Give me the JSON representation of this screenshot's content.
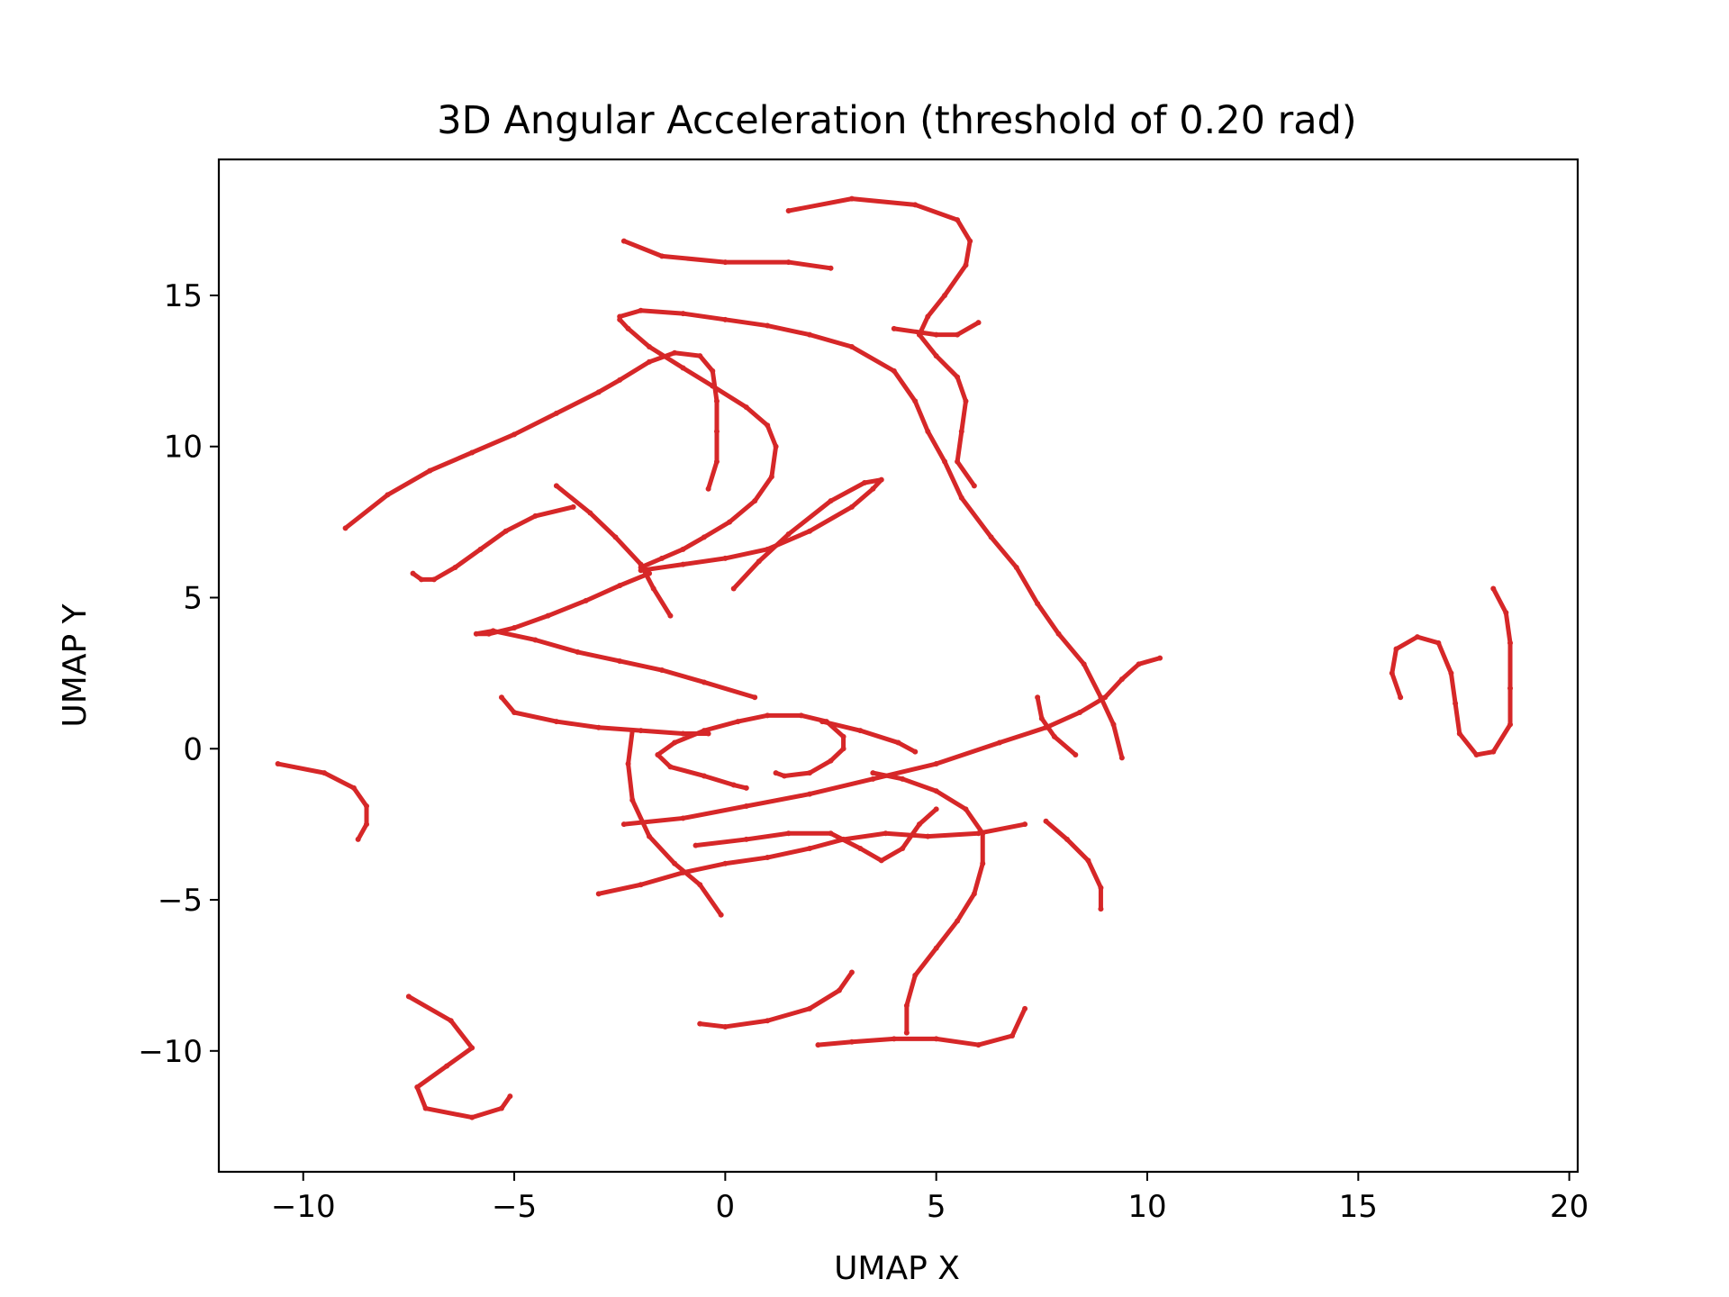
{
  "chart_data": {
    "type": "scatter",
    "title": "3D Angular Acceleration (threshold of 0.20 rad)",
    "xlabel": "UMAP X",
    "ylabel": "UMAP Y",
    "xlim": [
      -12,
      20.2
    ],
    "ylim": [
      -14,
      19.5
    ],
    "xticks": [
      -10,
      -5,
      0,
      5,
      10,
      15,
      20
    ],
    "yticks": [
      -10,
      -5,
      0,
      5,
      10,
      15
    ],
    "xtick_labels": [
      "−10",
      "−5",
      "0",
      "5",
      "10",
      "15",
      "20"
    ],
    "ytick_labels": [
      "−10",
      "−5",
      "0",
      "5",
      "10",
      "15"
    ],
    "grid": false,
    "legend": "none",
    "marker_color": "#d62728",
    "series": [
      {
        "values": [
          [
            1.5,
            17.8
          ],
          [
            3,
            18.2
          ],
          [
            4.5,
            18
          ],
          [
            5.5,
            17.5
          ],
          [
            5.8,
            16.8
          ],
          [
            5.7,
            16
          ],
          [
            5.2,
            15
          ],
          [
            4.8,
            14.3
          ],
          [
            4.6,
            13.7
          ],
          [
            5,
            13
          ],
          [
            5.5,
            12.3
          ],
          [
            5.7,
            11.5
          ],
          [
            5.6,
            10.5
          ],
          [
            5.5,
            9.5
          ],
          [
            5.9,
            8.7
          ]
        ]
      },
      {
        "values": [
          [
            4,
            13.9
          ],
          [
            5,
            13.7
          ],
          [
            5.5,
            13.7
          ],
          [
            6,
            14.1
          ]
        ]
      },
      {
        "values": [
          [
            -2.4,
            16.8
          ],
          [
            -1.5,
            16.3
          ],
          [
            0,
            16.1
          ],
          [
            1.5,
            16.1
          ],
          [
            2.5,
            15.9
          ]
        ]
      },
      {
        "values": [
          [
            -2.5,
            14.3
          ],
          [
            -2,
            14.5
          ],
          [
            -1,
            14.4
          ],
          [
            0,
            14.2
          ],
          [
            1,
            14
          ],
          [
            2,
            13.7
          ],
          [
            3,
            13.3
          ],
          [
            4,
            12.5
          ],
          [
            4.5,
            11.5
          ],
          [
            4.8,
            10.5
          ],
          [
            5.2,
            9.5
          ],
          [
            5.6,
            8.3
          ],
          [
            6.3,
            7
          ],
          [
            6.9,
            6
          ],
          [
            7.4,
            4.8
          ],
          [
            7.9,
            3.8
          ],
          [
            8.5,
            2.8
          ],
          [
            8.9,
            1.7
          ],
          [
            9.2,
            0.8
          ],
          [
            9.4,
            -0.3
          ]
        ]
      },
      {
        "values": [
          [
            -2.5,
            14.2
          ],
          [
            -2.3,
            13.9
          ],
          [
            -1.8,
            13.3
          ],
          [
            -1,
            12.6
          ],
          [
            -0.3,
            12
          ],
          [
            0.5,
            11.3
          ],
          [
            1,
            10.7
          ],
          [
            1.2,
            10
          ],
          [
            1.1,
            9
          ],
          [
            0.7,
            8.2
          ],
          [
            0.1,
            7.5
          ],
          [
            -0.5,
            7
          ],
          [
            -1,
            6.6
          ],
          [
            -1.5,
            6.3
          ],
          [
            -2,
            6
          ]
        ]
      },
      {
        "values": [
          [
            -0.4,
            8.6
          ],
          [
            -0.2,
            9.5
          ],
          [
            -0.2,
            10.5
          ],
          [
            -0.2,
            11.5
          ],
          [
            -0.3,
            12.5
          ],
          [
            -0.6,
            13
          ],
          [
            -1.2,
            13.1
          ],
          [
            -1.8,
            12.8
          ],
          [
            -2.5,
            12.2
          ],
          [
            -3,
            11.8
          ],
          [
            -4,
            11.1
          ],
          [
            -5,
            10.4
          ],
          [
            -6,
            9.8
          ],
          [
            -7,
            9.2
          ],
          [
            -8,
            8.4
          ],
          [
            -9,
            7.3
          ]
        ]
      },
      {
        "values": [
          [
            -7.4,
            5.8
          ],
          [
            -7.2,
            5.6
          ],
          [
            -6.9,
            5.6
          ],
          [
            -6.4,
            6
          ],
          [
            -5.8,
            6.6
          ],
          [
            -5.2,
            7.2
          ],
          [
            -4.5,
            7.7
          ],
          [
            -3.6,
            8
          ]
        ]
      },
      {
        "values": [
          [
            -4,
            8.7
          ],
          [
            -3.2,
            7.8
          ],
          [
            -2.6,
            7
          ],
          [
            -2,
            6.1
          ],
          [
            -1.7,
            5.3
          ],
          [
            -1.3,
            4.4
          ]
        ]
      },
      {
        "values": [
          [
            -2,
            5.9
          ],
          [
            -1,
            6.1
          ],
          [
            0,
            6.3
          ],
          [
            1,
            6.6
          ],
          [
            2,
            7.2
          ],
          [
            3,
            8
          ],
          [
            3.5,
            8.6
          ],
          [
            3.7,
            8.9
          ],
          [
            3.3,
            8.8
          ],
          [
            2.5,
            8.2
          ],
          [
            1.5,
            7.1
          ],
          [
            0.8,
            6.2
          ],
          [
            0.2,
            5.3
          ]
        ]
      },
      {
        "values": [
          [
            -1.8,
            5.8
          ],
          [
            -2.5,
            5.4
          ],
          [
            -3.3,
            4.9
          ],
          [
            -4.2,
            4.4
          ],
          [
            -5,
            4
          ],
          [
            -5.6,
            3.8
          ],
          [
            -5.9,
            3.8
          ],
          [
            -5.5,
            3.9
          ],
          [
            -4.5,
            3.6
          ],
          [
            -3.5,
            3.2
          ],
          [
            -2.5,
            2.9
          ],
          [
            -1.5,
            2.6
          ],
          [
            -0.5,
            2.2
          ],
          [
            0.7,
            1.7
          ]
        ]
      },
      {
        "values": [
          [
            -5.3,
            1.7
          ],
          [
            -5,
            1.2
          ],
          [
            -4,
            0.9
          ],
          [
            -3,
            0.7
          ],
          [
            -2,
            0.6
          ],
          [
            -1,
            0.5
          ],
          [
            -0.4,
            0.5
          ]
        ]
      },
      {
        "values": [
          [
            -2.2,
            0.6
          ],
          [
            -2.3,
            -0.5
          ],
          [
            -2.2,
            -1.7
          ],
          [
            -1.8,
            -2.9
          ],
          [
            -1.2,
            -3.8
          ],
          [
            -0.6,
            -4.5
          ],
          [
            -0.1,
            -5.5
          ]
        ]
      },
      {
        "values": [
          [
            -10.6,
            -0.5
          ],
          [
            -9.5,
            -0.8
          ],
          [
            -8.8,
            -1.3
          ],
          [
            -8.5,
            -1.9
          ],
          [
            -8.5,
            -2.5
          ],
          [
            -8.7,
            -3
          ]
        ]
      },
      {
        "values": [
          [
            1.2,
            -0.8
          ],
          [
            1.4,
            -0.9
          ],
          [
            2,
            -0.8
          ],
          [
            2.5,
            -0.4
          ],
          [
            2.8,
            0
          ],
          [
            2.8,
            0.4
          ],
          [
            2.4,
            0.9
          ],
          [
            1.8,
            1.1
          ],
          [
            1,
            1.1
          ],
          [
            0.3,
            0.9
          ],
          [
            -0.5,
            0.6
          ],
          [
            -1.2,
            0.2
          ],
          [
            -1.6,
            -0.2
          ],
          [
            -1.3,
            -0.6
          ],
          [
            -0.5,
            -0.9
          ],
          [
            0.2,
            -1.2
          ],
          [
            0.5,
            -1.3
          ]
        ]
      },
      {
        "values": [
          [
            -2.4,
            -2.5
          ],
          [
            -1,
            -2.3
          ],
          [
            0.5,
            -1.9
          ],
          [
            2,
            -1.5
          ],
          [
            3.5,
            -1
          ],
          [
            5,
            -0.5
          ],
          [
            6.5,
            0.2
          ],
          [
            7.6,
            0.7
          ],
          [
            8.4,
            1.2
          ],
          [
            9,
            1.7
          ],
          [
            9.4,
            2.3
          ],
          [
            9.8,
            2.8
          ],
          [
            10.3,
            3
          ]
        ]
      },
      {
        "values": [
          [
            2.3,
            0.9
          ],
          [
            3.2,
            0.6
          ],
          [
            4.1,
            0.2
          ],
          [
            4.5,
            -0.1
          ]
        ]
      },
      {
        "values": [
          [
            7.4,
            1.7
          ],
          [
            7.5,
            1
          ],
          [
            7.8,
            0.4
          ],
          [
            8.3,
            -0.2
          ]
        ]
      },
      {
        "values": [
          [
            -0.7,
            -3.2
          ],
          [
            0.5,
            -3
          ],
          [
            1.5,
            -2.8
          ],
          [
            2.5,
            -2.8
          ],
          [
            3.2,
            -3.3
          ],
          [
            3.7,
            -3.7
          ],
          [
            4.2,
            -3.3
          ],
          [
            4.6,
            -2.5
          ],
          [
            5,
            -2
          ]
        ]
      },
      {
        "values": [
          [
            -3,
            -4.8
          ],
          [
            -2,
            -4.5
          ],
          [
            -1,
            -4.1
          ],
          [
            0,
            -3.8
          ],
          [
            1,
            -3.6
          ],
          [
            2,
            -3.3
          ],
          [
            2.8,
            -3
          ],
          [
            3.8,
            -2.8
          ],
          [
            4.8,
            -2.9
          ],
          [
            6,
            -2.8
          ],
          [
            7.1,
            -2.5
          ]
        ]
      },
      {
        "values": [
          [
            4.3,
            -9.4
          ],
          [
            4.3,
            -8.5
          ],
          [
            4.5,
            -7.5
          ],
          [
            5,
            -6.6
          ],
          [
            5.5,
            -5.7
          ],
          [
            5.9,
            -4.8
          ],
          [
            6.1,
            -3.8
          ],
          [
            6.1,
            -2.8
          ],
          [
            5.7,
            -2
          ],
          [
            5,
            -1.4
          ],
          [
            4.2,
            -1
          ],
          [
            3.5,
            -0.8
          ]
        ]
      },
      {
        "values": [
          [
            7.6,
            -2.4
          ],
          [
            8.1,
            -3
          ],
          [
            8.6,
            -3.7
          ],
          [
            8.9,
            -4.6
          ],
          [
            8.9,
            -5.3
          ]
        ]
      },
      {
        "values": [
          [
            -0.6,
            -9.1
          ],
          [
            0,
            -9.2
          ],
          [
            1,
            -9
          ],
          [
            2,
            -8.6
          ],
          [
            2.7,
            -8
          ],
          [
            3,
            -7.4
          ]
        ]
      },
      {
        "values": [
          [
            2.2,
            -9.8
          ],
          [
            3,
            -9.7
          ],
          [
            4,
            -9.6
          ],
          [
            5,
            -9.6
          ],
          [
            6,
            -9.8
          ],
          [
            6.8,
            -9.5
          ],
          [
            7.1,
            -8.6
          ]
        ]
      },
      {
        "values": [
          [
            -7.5,
            -8.2
          ],
          [
            -6.5,
            -9
          ],
          [
            -6,
            -9.9
          ],
          [
            -6.6,
            -10.5
          ],
          [
            -7.3,
            -11.2
          ],
          [
            -7.1,
            -11.9
          ],
          [
            -6,
            -12.2
          ],
          [
            -5.3,
            -11.9
          ],
          [
            -5.1,
            -11.5
          ]
        ]
      },
      {
        "values": [
          [
            16,
            1.7
          ],
          [
            15.8,
            2.5
          ],
          [
            15.9,
            3.3
          ],
          [
            16.4,
            3.7
          ],
          [
            16.9,
            3.5
          ],
          [
            17.2,
            2.5
          ],
          [
            17.3,
            1.5
          ],
          [
            17.4,
            0.5
          ],
          [
            17.8,
            -0.2
          ],
          [
            18.2,
            -0.1
          ],
          [
            18.6,
            0.8
          ],
          [
            18.6,
            2
          ],
          [
            18.6,
            3.5
          ],
          [
            18.5,
            4.5
          ],
          [
            18.2,
            5.3
          ]
        ]
      }
    ]
  }
}
